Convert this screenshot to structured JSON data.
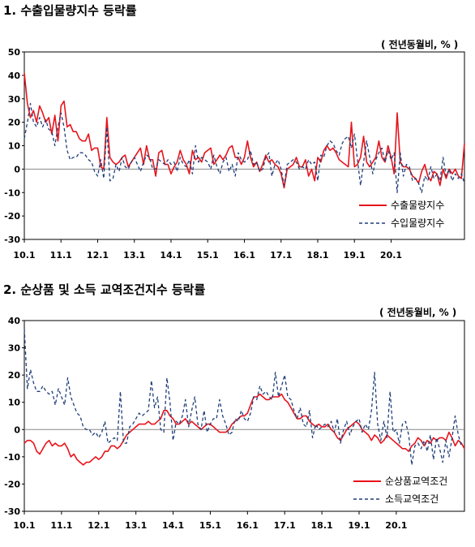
{
  "sections": [
    {
      "title": "1. 수출입물량지수 등락률",
      "unit_label": "( 전년동월비, % )"
    },
    {
      "title": "2. 순상품 및 소득 교역조건지수 등락률",
      "unit_label": "( 전년동월비, % )"
    }
  ],
  "colors": {
    "solid_series": "#e8141c",
    "dashed_series": "#1f3f7a",
    "zero_line": "#888888"
  },
  "chart_data": [
    {
      "type": "line",
      "ylim": [
        -30,
        50
      ],
      "yticks": [
        -30,
        -20,
        -10,
        0,
        10,
        20,
        30,
        40,
        50
      ],
      "xtick_labels": [
        "10.1",
        "11.1",
        "12.1",
        "13.1",
        "14.1",
        "15.1",
        "16.1",
        "17.1",
        "18.1",
        "19.1",
        "20.1"
      ],
      "legend_position": "bottom-right",
      "series": [
        {
          "name": "수출물량지수",
          "style": "solid",
          "values": [
            41,
            28,
            22,
            25,
            20,
            27,
            24,
            20,
            22,
            15,
            23,
            12,
            27,
            29,
            18,
            19,
            16,
            16,
            13,
            12,
            12,
            15,
            8,
            9,
            9,
            1,
            0,
            22,
            5,
            3,
            2,
            3,
            5,
            6,
            1,
            3,
            5,
            7,
            9,
            2,
            10,
            4,
            4,
            -3,
            7,
            8,
            2,
            2,
            -2,
            1,
            3,
            8,
            4,
            2,
            -2,
            8,
            4,
            5,
            3,
            7,
            8,
            9,
            2,
            4,
            6,
            4,
            6,
            9,
            10,
            5,
            5,
            2,
            5,
            12,
            5,
            1,
            3,
            -1,
            2,
            6,
            3,
            4,
            2,
            1,
            -2,
            -8,
            0,
            1,
            2,
            5,
            1,
            1,
            4,
            -3,
            0,
            -5,
            5,
            3,
            8,
            10,
            8,
            9,
            7,
            4,
            3,
            2,
            1,
            20,
            1,
            2,
            5,
            14,
            3,
            1,
            3,
            5,
            12,
            5,
            3,
            10,
            5,
            -2,
            24,
            3,
            1,
            1,
            0,
            -3,
            -4,
            -6,
            -1,
            2,
            -3,
            -5,
            -1,
            -2,
            -7,
            0,
            -4,
            0,
            -2,
            0,
            -3,
            -4,
            11
          ]
        },
        {
          "name": "수입물량지수",
          "style": "dashed",
          "values": [
            13,
            20,
            28,
            20,
            18,
            22,
            18,
            21,
            17,
            16,
            10,
            18,
            24,
            18,
            8,
            4,
            5,
            5,
            7,
            7,
            6,
            4,
            3,
            -1,
            -3,
            4,
            -4,
            18,
            -5,
            -4,
            2,
            -1,
            5,
            1,
            0,
            3,
            5,
            2,
            -1,
            3,
            6,
            5,
            0,
            0,
            4,
            3,
            2,
            4,
            2,
            3,
            -1,
            5,
            2,
            1,
            4,
            -2,
            10,
            3,
            5,
            4,
            3,
            0,
            6,
            1,
            -2,
            3,
            5,
            -1,
            2,
            -3,
            7,
            4,
            3,
            4,
            8,
            2,
            3,
            -1,
            0,
            5,
            7,
            -3,
            2,
            4,
            0,
            -7,
            2,
            3,
            4,
            3,
            0,
            1,
            0,
            4,
            2,
            3,
            -5,
            6,
            5,
            10,
            12,
            11,
            8,
            6,
            11,
            13,
            14,
            9,
            15,
            4,
            -7,
            3,
            12,
            5,
            -2,
            4,
            7,
            9,
            3,
            8,
            4,
            7,
            -10,
            7,
            -3,
            2,
            1,
            -5,
            -4,
            -6,
            -10,
            -3,
            -5,
            1,
            -4,
            -2,
            -5,
            5,
            -3,
            0,
            -5,
            -2,
            -4,
            -2,
            -6
          ]
        }
      ]
    },
    {
      "type": "line",
      "ylim": [
        -30,
        40
      ],
      "yticks": [
        -30,
        -20,
        -10,
        0,
        10,
        20,
        30,
        40
      ],
      "xtick_labels": [
        "10.1",
        "11.1",
        "12.1",
        "13.1",
        "14.1",
        "15.1",
        "16.1",
        "17.1",
        "18.1",
        "19.1",
        "20.1"
      ],
      "legend_position": "bottom-right",
      "series": [
        {
          "name": "순상품교역조건",
          "style": "solid",
          "values": [
            -5,
            -4,
            -4,
            -5,
            -8,
            -9,
            -7,
            -5,
            -4,
            -6,
            -5,
            -6,
            -6,
            -5,
            -7,
            -10,
            -9,
            -11,
            -12,
            -13,
            -12,
            -12,
            -11,
            -10,
            -11,
            -10,
            -8,
            -8,
            -6,
            -6,
            -7,
            -6,
            -4,
            -2,
            -1,
            0,
            1,
            2,
            2,
            2,
            3,
            2,
            2,
            3,
            4,
            7,
            7,
            5,
            4,
            2,
            2,
            3,
            4,
            2,
            3,
            2,
            1,
            0,
            1,
            2,
            2,
            1,
            0,
            -1,
            -1,
            -1,
            0,
            2,
            3,
            4,
            5,
            5,
            6,
            9,
            12,
            12,
            13,
            12,
            11,
            11,
            12,
            12,
            12,
            13,
            11,
            10,
            8,
            6,
            4,
            4,
            5,
            5,
            3,
            2,
            1,
            2,
            1,
            1,
            2,
            0,
            -1,
            -3,
            -4,
            -2,
            0,
            1,
            2,
            3,
            2,
            0,
            -1,
            -2,
            -4,
            -2,
            -3,
            -5,
            -4,
            -2,
            -3,
            -4,
            -5,
            -6,
            -7,
            -7,
            -8,
            -6,
            -5,
            -3,
            -4,
            -6,
            -4,
            -5,
            -3,
            -4,
            -3,
            -3,
            -4,
            -1,
            -3,
            -6,
            -4,
            -5,
            -7
          ]
        },
        {
          "name": "소득교역조건",
          "style": "dashed",
          "values": [
            37,
            15,
            22,
            17,
            14,
            14,
            16,
            14,
            13,
            14,
            9,
            15,
            12,
            9,
            19,
            12,
            9,
            6,
            5,
            1,
            0,
            0,
            -2,
            -1,
            -3,
            -1,
            3,
            -5,
            -4,
            -3,
            -4,
            14,
            -5,
            -5,
            1,
            2,
            4,
            6,
            5,
            6,
            7,
            18,
            8,
            12,
            0,
            -1,
            19,
            10,
            -4,
            3,
            2,
            5,
            11,
            1,
            7,
            12,
            2,
            0,
            7,
            -1,
            2,
            4,
            4,
            11,
            5,
            2,
            -2,
            -1,
            4,
            3,
            7,
            4,
            3,
            6,
            12,
            11,
            16,
            13,
            14,
            12,
            11,
            21,
            12,
            16,
            20,
            12,
            11,
            7,
            4,
            8,
            2,
            1,
            7,
            -3,
            2,
            0,
            1,
            2,
            1,
            3,
            -1,
            4,
            -5,
            0,
            3,
            -2,
            1,
            3,
            4,
            -1,
            2,
            0,
            7,
            21,
            2,
            -4,
            3,
            -3,
            14,
            -1,
            0,
            -5,
            2,
            3,
            -2,
            -13,
            -6,
            -5,
            -7,
            -4,
            -8,
            -2,
            -11,
            -3,
            -7,
            -12,
            -4,
            -10,
            -3,
            5,
            -2,
            -6
          ]
        }
      ]
    }
  ]
}
